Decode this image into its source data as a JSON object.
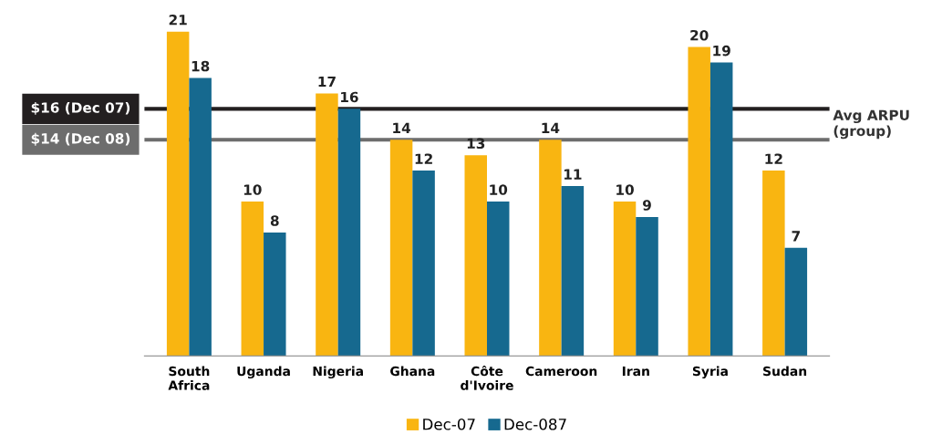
{
  "chart_data": {
    "type": "bar",
    "categories": [
      "South\nAfrica",
      "Uganda",
      "Nigeria",
      "Ghana",
      "Côte\nd'Ivoire",
      "Cameroon",
      "Iran",
      "Syria",
      "Sudan"
    ],
    "series": [
      {
        "name": "Dec-07",
        "color": "#f9b511",
        "values": [
          21,
          10,
          17,
          14,
          13,
          14,
          10,
          20,
          12
        ]
      },
      {
        "name": "Dec-087",
        "color": "#16698f",
        "values": [
          18,
          8,
          16,
          12,
          10,
          11,
          9,
          19,
          7
        ]
      }
    ],
    "data_labels": true,
    "ref_lines": [
      {
        "axis": "y",
        "value": 16,
        "label": "$16 (Dec 07)",
        "color": "#231f20"
      },
      {
        "axis": "y",
        "value": 14,
        "label": "$14 (Dec 08)",
        "color": "#6d6d6d"
      }
    ],
    "annotations": [
      "Avg ARPU (group)"
    ],
    "legend": "bottom",
    "tick_labels": "x",
    "grid": false
  }
}
